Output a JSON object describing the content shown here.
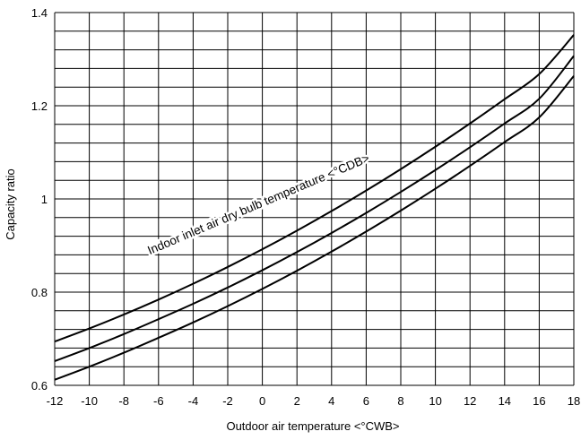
{
  "chart_data": {
    "type": "line",
    "xlabel": "Outdoor air temperature <°CWB>",
    "ylabel": "Capacity ratio",
    "xlim": [
      -12,
      18
    ],
    "ylim": [
      0.6,
      1.4
    ],
    "x_ticks": [
      -12,
      -10,
      -8,
      -6,
      -4,
      -2,
      0,
      2,
      4,
      6,
      8,
      10,
      12,
      14,
      16,
      18
    ],
    "x_tick_labels": [
      "-12",
      "-10",
      "-8",
      "-6",
      "-4",
      "-2",
      "0",
      "2",
      "4",
      "6",
      "8",
      "10",
      "12",
      "14",
      "16",
      "18"
    ],
    "y_ticks": [
      0.6,
      0.8,
      1,
      1.2,
      1.4
    ],
    "y_tick_labels": [
      "0.6",
      "0.8",
      "1",
      "1.2",
      "1.4"
    ],
    "grid": true,
    "x_grid_step": 2,
    "y_grid_step": 0.04,
    "annotation": "Indoor inlet air dry bulb temperature <°CDB>",
    "series": [
      {
        "x": [
          -12,
          -10,
          -8,
          -6,
          -4,
          -2,
          0,
          2,
          4,
          6,
          8,
          10,
          12,
          14,
          16,
          18
        ],
        "y": [
          0.694,
          0.722,
          0.752,
          0.784,
          0.818,
          0.854,
          0.892,
          0.932,
          0.974,
          1.018,
          1.064,
          1.112,
          1.162,
          1.214,
          1.268,
          1.352
        ]
      },
      {
        "x": [
          -12,
          -10,
          -8,
          -6,
          -4,
          -2,
          0,
          2,
          4,
          6,
          8,
          10,
          12,
          14,
          16,
          18
        ],
        "y": [
          0.652,
          0.68,
          0.71,
          0.742,
          0.775,
          0.81,
          0.847,
          0.886,
          0.927,
          0.97,
          1.015,
          1.062,
          1.111,
          1.162,
          1.215,
          1.307
        ]
      },
      {
        "x": [
          -12,
          -10,
          -8,
          -6,
          -4,
          -2,
          0,
          2,
          4,
          6,
          8,
          10,
          12,
          14,
          16,
          18
        ],
        "y": [
          0.612,
          0.64,
          0.67,
          0.702,
          0.735,
          0.77,
          0.807,
          0.846,
          0.887,
          0.93,
          0.975,
          1.022,
          1.071,
          1.122,
          1.175,
          1.264
        ]
      }
    ]
  }
}
